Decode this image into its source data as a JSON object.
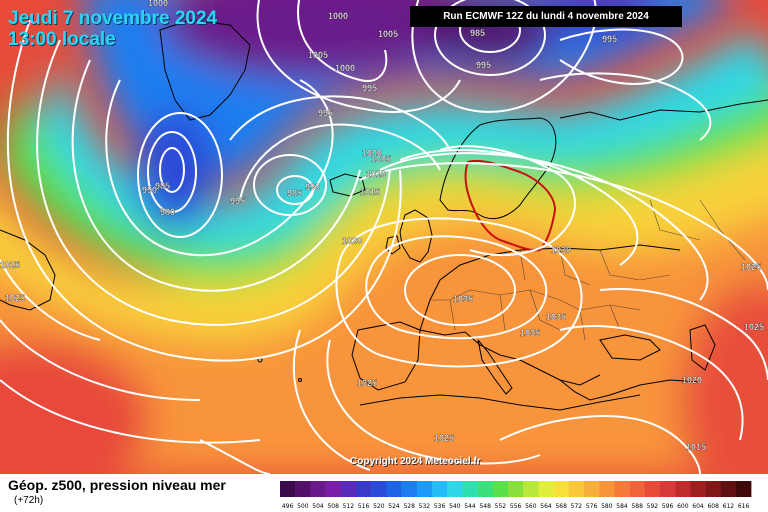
{
  "header": {
    "date_line": "Jeudi 7 novembre 2024",
    "time_line": "13:00 locale",
    "run_label": "Run ECMWF 12Z du lundi 4 novembre 2024"
  },
  "footer": {
    "parameter": "Géop. z500, pression niveau mer",
    "lead_time": "(+72h)",
    "copyright": "Copyright 2024 Meteociel.fr"
  },
  "colorscale": {
    "ticks": [
      "496",
      "500",
      "504",
      "508",
      "512",
      "516",
      "520",
      "524",
      "528",
      "532",
      "536",
      "540",
      "544",
      "548",
      "552",
      "556",
      "560",
      "564",
      "568",
      "572",
      "576",
      "580",
      "584",
      "588",
      "592",
      "596",
      "600",
      "604",
      "608",
      "612",
      "616"
    ],
    "colors": [
      "#3a0a4a",
      "#52106a",
      "#6a1a8a",
      "#7a1ea8",
      "#5a2ab8",
      "#3a3ac8",
      "#2a4ad8",
      "#1e62e6",
      "#1e7ef0",
      "#1e9af8",
      "#26bcf8",
      "#2ed8e8",
      "#2ee0b0",
      "#3ae07a",
      "#5ae04a",
      "#8ae03a",
      "#b8e83a",
      "#e0f03a",
      "#f8e03a",
      "#f8c83a",
      "#f8ae3a",
      "#f8943a",
      "#f87a3a",
      "#f0623a",
      "#e84a3a",
      "#d83a3a",
      "#c02a2a",
      "#a01e1e",
      "#801818",
      "#601010",
      "#400808"
    ]
  },
  "isobar_labels": [
    {
      "text": "1000"
    },
    {
      "text": "1000"
    },
    {
      "text": "1005"
    },
    {
      "text": "1000"
    },
    {
      "text": "995"
    },
    {
      "text": "995"
    },
    {
      "text": "1005"
    },
    {
      "text": "985"
    },
    {
      "text": "995"
    },
    {
      "text": "995"
    },
    {
      "text": "985"
    },
    {
      "text": "990"
    },
    {
      "text": "980"
    },
    {
      "text": "995"
    },
    {
      "text": "985"
    },
    {
      "text": "990"
    },
    {
      "text": "1000"
    },
    {
      "text": "1005"
    },
    {
      "text": "1010"
    },
    {
      "text": "1015"
    },
    {
      "text": "1020"
    },
    {
      "text": "1030"
    },
    {
      "text": "1025"
    },
    {
      "text": "1035"
    },
    {
      "text": "1035"
    },
    {
      "text": "1035"
    },
    {
      "text": "1025"
    },
    {
      "text": "1020"
    },
    {
      "text": "1025"
    },
    {
      "text": "1015"
    },
    {
      "text": "1025"
    },
    {
      "text": "1025"
    },
    {
      "text": "1025"
    }
  ]
}
